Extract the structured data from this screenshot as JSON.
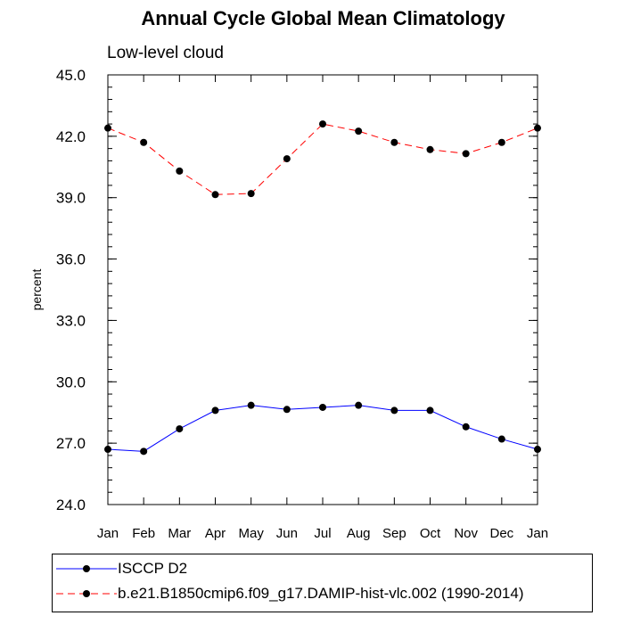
{
  "chart_data": {
    "type": "line",
    "title": "Annual Cycle Global Mean Climatology",
    "subtitle": "Low-level cloud",
    "xlabel": "",
    "ylabel": "percent",
    "categories": [
      "Jan",
      "Feb",
      "Mar",
      "Apr",
      "May",
      "Jun",
      "Jul",
      "Aug",
      "Sep",
      "Oct",
      "Nov",
      "Dec",
      "Jan"
    ],
    "ylim": [
      24.0,
      45.0
    ],
    "yticks": [
      "24.0",
      "27.0",
      "30.0",
      "33.0",
      "36.0",
      "39.0",
      "42.0",
      "45.0"
    ],
    "grid": false,
    "legend_position": "bottom",
    "series": [
      {
        "name": "ISCCP D2",
        "color": "#0000ff",
        "line_style": "solid",
        "values": [
          26.7,
          26.6,
          27.7,
          28.6,
          28.85,
          28.65,
          28.75,
          28.85,
          28.6,
          28.6,
          27.8,
          27.2,
          26.7
        ]
      },
      {
        "name": "b.e21.B1850cmip6.f09_g17.DAMIP-hist-vlc.002 (1990-2014)",
        "color": "#ff0000",
        "line_style": "dashed",
        "values": [
          42.4,
          41.7,
          40.3,
          39.15,
          39.2,
          40.9,
          42.6,
          42.25,
          41.7,
          41.35,
          41.15,
          41.7,
          42.4
        ]
      }
    ]
  }
}
